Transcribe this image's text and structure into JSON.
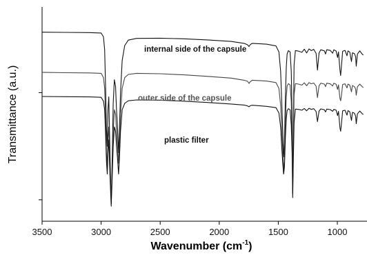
{
  "chart_data": {
    "type": "line",
    "xlabel": "Wavenumber (cm",
    "xlabel_sup": "-1",
    "xlabel_close": ")",
    "ylabel": "Transmittance (a.u.)",
    "x_reversed": true,
    "xlim": [
      3500,
      780
    ],
    "xticks": [
      3500,
      3000,
      2500,
      2000,
      1500,
      1000
    ],
    "xtick_labels": [
      "3500",
      "3000",
      "2500",
      "2000",
      "1500",
      "1000"
    ],
    "ylim": [
      0,
      100
    ],
    "yticks": [
      10,
      60
    ],
    "grid": false,
    "series": [
      {
        "name": "internal side of the capsule",
        "color": "#111111",
        "points": [
          [
            3500,
            88.2
          ],
          [
            3300,
            88.1
          ],
          [
            3100,
            88.0
          ],
          [
            3000,
            87.8
          ],
          [
            2980,
            86
          ],
          [
            2970,
            80
          ],
          [
            2962,
            62
          ],
          [
            2955,
            43
          ],
          [
            2948,
            35
          ],
          [
            2942,
            52
          ],
          [
            2935,
            58
          ],
          [
            2928,
            40
          ],
          [
            2920,
            20
          ],
          [
            2915,
            8
          ],
          [
            2908,
            25
          ],
          [
            2898,
            55
          ],
          [
            2888,
            66
          ],
          [
            2878,
            63
          ],
          [
            2870,
            52
          ],
          [
            2862,
            45
          ],
          [
            2852,
            32
          ],
          [
            2845,
            42
          ],
          [
            2836,
            60
          ],
          [
            2822,
            75
          ],
          [
            2800,
            82
          ],
          [
            2770,
            84.5
          ],
          [
            2700,
            85.3
          ],
          [
            2500,
            85.4
          ],
          [
            2300,
            85.1
          ],
          [
            2100,
            84.6
          ],
          [
            1900,
            83.9
          ],
          [
            1790,
            83.0
          ],
          [
            1760,
            82.3
          ],
          [
            1748,
            81.5
          ],
          [
            1737,
            82.4
          ],
          [
            1720,
            83.0
          ],
          [
            1600,
            82.6
          ],
          [
            1520,
            81.8
          ],
          [
            1495,
            79
          ],
          [
            1480,
            70
          ],
          [
            1470,
            55
          ],
          [
            1462,
            42
          ],
          [
            1455,
            30
          ],
          [
            1448,
            36
          ],
          [
            1440,
            58
          ],
          [
            1432,
            72
          ],
          [
            1425,
            78
          ],
          [
            1415,
            79.6
          ],
          [
            1400,
            79
          ],
          [
            1390,
            70
          ],
          [
            1383,
            50
          ],
          [
            1378,
            13
          ],
          [
            1373,
            40
          ],
          [
            1366,
            73
          ],
          [
            1355,
            79.6
          ],
          [
            1330,
            79.4
          ],
          [
            1300,
            78.8
          ],
          [
            1280,
            80.3
          ],
          [
            1260,
            78.5
          ],
          [
            1240,
            80.4
          ],
          [
            1220,
            79.6
          ],
          [
            1200,
            80.2
          ],
          [
            1180,
            78.3
          ],
          [
            1168,
            70.5
          ],
          [
            1155,
            78.5
          ],
          [
            1140,
            80
          ],
          [
            1110,
            79.5
          ],
          [
            1100,
            78
          ],
          [
            1090,
            80
          ],
          [
            1060,
            79.7
          ],
          [
            1040,
            78.4
          ],
          [
            1030,
            80
          ],
          [
            1010,
            79.4
          ],
          [
            998,
            76.4
          ],
          [
            990,
            79
          ],
          [
            978,
            70.5
          ],
          [
            972,
            68
          ],
          [
            965,
            72.5
          ],
          [
            955,
            79.3
          ],
          [
            935,
            79.7
          ],
          [
            918,
            77.2
          ],
          [
            910,
            79.5
          ],
          [
            895,
            78.9
          ],
          [
            880,
            74.5
          ],
          [
            872,
            78.6
          ],
          [
            855,
            78.2
          ],
          [
            845,
            76.8
          ],
          [
            840,
            72.3
          ],
          [
            830,
            78
          ],
          [
            810,
            79.5
          ],
          [
            790,
            78
          ],
          [
            780,
            77.5
          ]
        ]
      },
      {
        "name": "outer side of the capsule",
        "color": "#444444",
        "points": [
          [
            3500,
            69.5
          ],
          [
            3300,
            69.3
          ],
          [
            3100,
            69.2
          ],
          [
            3000,
            69.0
          ],
          [
            2980,
            67
          ],
          [
            2970,
            62
          ],
          [
            2962,
            48
          ],
          [
            2955,
            32
          ],
          [
            2948,
            26
          ],
          [
            2942,
            38
          ],
          [
            2935,
            44
          ],
          [
            2928,
            30
          ],
          [
            2920,
            17
          ],
          [
            2915,
            10
          ],
          [
            2908,
            20
          ],
          [
            2898,
            42
          ],
          [
            2888,
            52
          ],
          [
            2878,
            50
          ],
          [
            2870,
            42
          ],
          [
            2862,
            36
          ],
          [
            2852,
            27
          ],
          [
            2845,
            35
          ],
          [
            2836,
            50
          ],
          [
            2822,
            62
          ],
          [
            2800,
            67
          ],
          [
            2770,
            68.5
          ],
          [
            2700,
            69.0
          ],
          [
            2500,
            68.8
          ],
          [
            2300,
            68.3
          ],
          [
            2100,
            67.6
          ],
          [
            1900,
            66.8
          ],
          [
            1790,
            65.8
          ],
          [
            1760,
            65.3
          ],
          [
            1748,
            64.3
          ],
          [
            1737,
            65.1
          ],
          [
            1720,
            65.8
          ],
          [
            1600,
            65.4
          ],
          [
            1520,
            64.7
          ],
          [
            1495,
            62
          ],
          [
            1480,
            54
          ],
          [
            1470,
            42
          ],
          [
            1462,
            33
          ],
          [
            1455,
            24
          ],
          [
            1448,
            28
          ],
          [
            1440,
            46
          ],
          [
            1432,
            58
          ],
          [
            1425,
            63
          ],
          [
            1415,
            64.2
          ],
          [
            1400,
            63.6
          ],
          [
            1390,
            56
          ],
          [
            1383,
            40
          ],
          [
            1378,
            14
          ],
          [
            1373,
            34
          ],
          [
            1366,
            59
          ],
          [
            1355,
            64.2
          ],
          [
            1330,
            64.0
          ],
          [
            1300,
            63.5
          ],
          [
            1280,
            64.6
          ],
          [
            1260,
            63.2
          ],
          [
            1240,
            64.7
          ],
          [
            1220,
            64.1
          ],
          [
            1200,
            64.5
          ],
          [
            1180,
            63.0
          ],
          [
            1168,
            57.7
          ],
          [
            1155,
            63.2
          ],
          [
            1140,
            64.4
          ],
          [
            1110,
            64.0
          ],
          [
            1100,
            62.8
          ],
          [
            1090,
            64.4
          ],
          [
            1060,
            64.1
          ],
          [
            1040,
            63.1
          ],
          [
            1030,
            64.4
          ],
          [
            1010,
            63.9
          ],
          [
            998,
            61.5
          ],
          [
            990,
            63.6
          ],
          [
            978,
            57.3
          ],
          [
            972,
            56.2
          ],
          [
            965,
            58.7
          ],
          [
            955,
            63.8
          ],
          [
            935,
            64.1
          ],
          [
            918,
            62.2
          ],
          [
            910,
            64.0
          ],
          [
            895,
            63.5
          ],
          [
            880,
            60.4
          ],
          [
            872,
            63.3
          ],
          [
            855,
            62.8
          ],
          [
            845,
            61.7
          ],
          [
            840,
            58.8
          ],
          [
            830,
            62.7
          ],
          [
            810,
            64.0
          ],
          [
            790,
            62.8
          ],
          [
            780,
            62.4
          ]
        ]
      },
      {
        "name": "plastic filter",
        "color": "#111111",
        "points": [
          [
            3500,
            58.2
          ],
          [
            3300,
            58.1
          ],
          [
            3100,
            58.0
          ],
          [
            3000,
            57.8
          ],
          [
            2980,
            56
          ],
          [
            2970,
            52
          ],
          [
            2962,
            40
          ],
          [
            2955,
            28
          ],
          [
            2948,
            22
          ],
          [
            2942,
            32
          ],
          [
            2935,
            38
          ],
          [
            2928,
            26
          ],
          [
            2920,
            14
          ],
          [
            2915,
            7
          ],
          [
            2908,
            18
          ],
          [
            2898,
            35
          ],
          [
            2888,
            44
          ],
          [
            2878,
            42
          ],
          [
            2870,
            35
          ],
          [
            2862,
            30
          ],
          [
            2852,
            22
          ],
          [
            2845,
            29
          ],
          [
            2836,
            42
          ],
          [
            2822,
            52
          ],
          [
            2800,
            55
          ],
          [
            2770,
            56.2
          ],
          [
            2700,
            56.6
          ],
          [
            2500,
            56.5
          ],
          [
            2300,
            56.0
          ],
          [
            2100,
            55.4
          ],
          [
            1900,
            54.7
          ],
          [
            1790,
            54.2
          ],
          [
            1760,
            53.8
          ],
          [
            1748,
            53.4
          ],
          [
            1737,
            53.9
          ],
          [
            1720,
            54.1
          ],
          [
            1600,
            53.6
          ],
          [
            1520,
            53.0
          ],
          [
            1495,
            50.5
          ],
          [
            1480,
            44
          ],
          [
            1470,
            34
          ],
          [
            1462,
            27
          ],
          [
            1455,
            22
          ],
          [
            1448,
            25
          ],
          [
            1440,
            39
          ],
          [
            1432,
            48
          ],
          [
            1425,
            51.5
          ],
          [
            1415,
            52.5
          ],
          [
            1400,
            52
          ],
          [
            1390,
            45
          ],
          [
            1383,
            32
          ],
          [
            1378,
            11
          ],
          [
            1373,
            26
          ],
          [
            1366,
            46
          ],
          [
            1355,
            52.3
          ],
          [
            1330,
            52.2
          ],
          [
            1300,
            51.8
          ],
          [
            1280,
            52.6
          ],
          [
            1260,
            51.5
          ],
          [
            1240,
            52.7
          ],
          [
            1220,
            52.2
          ],
          [
            1200,
            52.5
          ],
          [
            1180,
            51.2
          ],
          [
            1168,
            46.5
          ],
          [
            1155,
            51.4
          ],
          [
            1140,
            52.4
          ],
          [
            1110,
            52.0
          ],
          [
            1100,
            51.0
          ],
          [
            1090,
            52.3
          ],
          [
            1060,
            52.1
          ],
          [
            1040,
            51.3
          ],
          [
            1030,
            52.2
          ],
          [
            1010,
            51.8
          ],
          [
            998,
            49.3
          ],
          [
            990,
            51.3
          ],
          [
            978,
            43.5
          ],
          [
            972,
            42
          ],
          [
            965,
            45.5
          ],
          [
            955,
            51.5
          ],
          [
            935,
            51.8
          ],
          [
            918,
            49.5
          ],
          [
            910,
            51.6
          ],
          [
            895,
            51.1
          ],
          [
            880,
            47
          ],
          [
            872,
            50.8
          ],
          [
            855,
            50.4
          ],
          [
            845,
            49
          ],
          [
            840,
            45.5
          ],
          [
            830,
            50.1
          ],
          [
            810,
            51.4
          ],
          [
            790,
            50.2
          ],
          [
            780,
            49.8
          ]
        ]
      }
    ]
  }
}
